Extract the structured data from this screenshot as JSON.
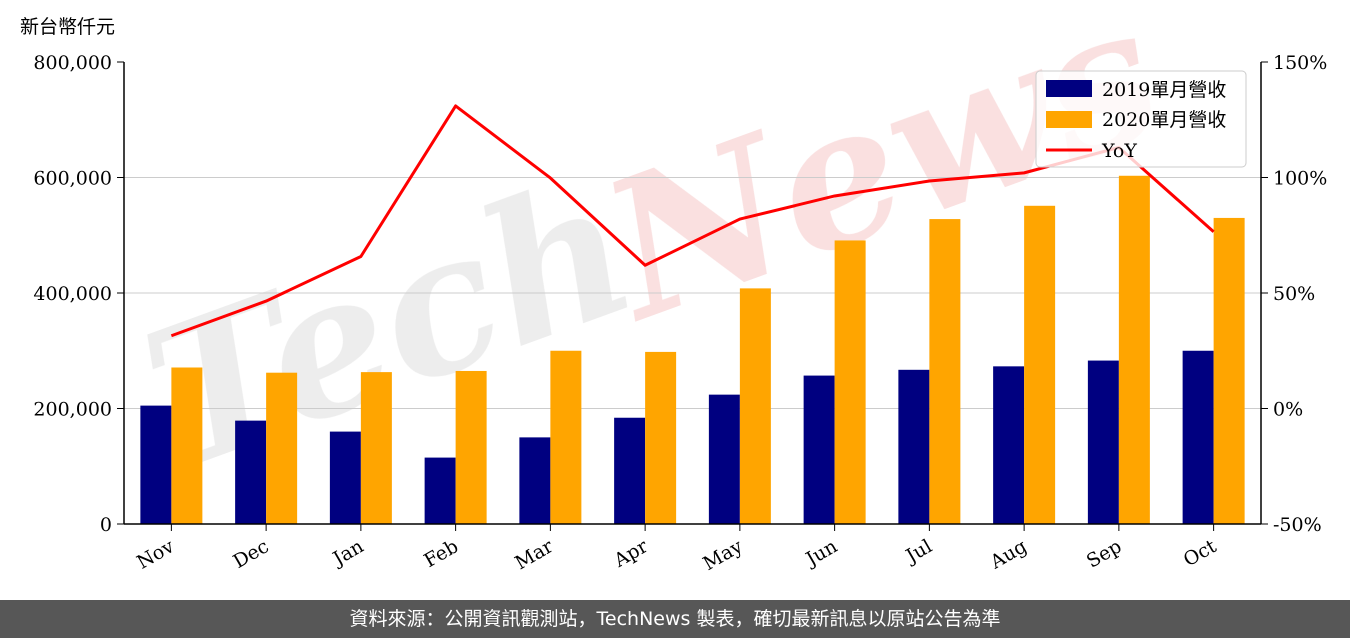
{
  "unit_label": "新台幣仟元",
  "footer": "資料來源：公開資訊觀測站，TechNews 製表，確切最新訊息以原站公告為準",
  "watermark": {
    "tech": "Tech",
    "news": "News"
  },
  "colors": {
    "series2019": "#000080",
    "series2020": "#FFA500",
    "yoy": "#FF0000",
    "grid": "#cccccc"
  },
  "chart_data": {
    "type": "bar",
    "categories": [
      "Nov",
      "Dec",
      "Jan",
      "Feb",
      "Mar",
      "Apr",
      "May",
      "Jun",
      "Jul",
      "Aug",
      "Sep",
      "Oct"
    ],
    "series": [
      {
        "name": "2019單月營收",
        "axis": "left",
        "values": [
          205000,
          179000,
          160000,
          115000,
          150000,
          184000,
          224000,
          257000,
          267000,
          273000,
          283000,
          300000
        ]
      },
      {
        "name": "2020單月營收",
        "axis": "left",
        "values": [
          271000,
          262000,
          263000,
          265000,
          300000,
          298000,
          408000,
          491000,
          528000,
          551000,
          603000,
          530000
        ]
      },
      {
        "name": "YoY",
        "type": "line",
        "axis": "right",
        "values": [
          31.5,
          46.5,
          65.8,
          131,
          99.8,
          62,
          82,
          92,
          98.5,
          102,
          113,
          76.5
        ]
      }
    ],
    "y_left": {
      "ylim": [
        0,
        800000
      ],
      "ticks": [
        "0",
        "200,000",
        "400,000",
        "600,000",
        "800,000"
      ],
      "tick_values": [
        0,
        200000,
        400000,
        600000,
        800000
      ]
    },
    "y_right": {
      "ylim": [
        -50,
        150
      ],
      "ticks": [
        "-50%",
        "0%",
        "50%",
        "100%",
        "150%"
      ],
      "tick_values": [
        -50,
        0,
        50,
        100,
        150
      ]
    },
    "grid": true,
    "legend_position": "top-right"
  }
}
